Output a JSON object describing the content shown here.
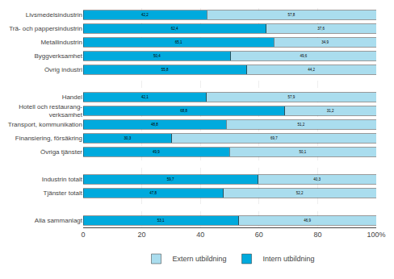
{
  "chart_data": {
    "type": "bar",
    "orientation": "horizontal",
    "stacked": true,
    "data_labels": true,
    "grid": true,
    "legend": "bottom",
    "categories": [
      "Livsmedelsindustrin",
      "Trä- och pappersindustrin",
      "Metallindustrin",
      "Byggverksamhet",
      "Övrig industri",
      null,
      "Handel",
      "Hotell och restaurang-\nverksamhet",
      "Transport, kommunikation",
      "Finansiering, försäkring",
      "Övriga tjänster",
      null,
      "Industrin totalt",
      "Tjänster totalt",
      null,
      "Alla sammanlagt"
    ],
    "series": [
      {
        "name": "Intern utbildning",
        "color": "#00aadd",
        "values": [
          42.2,
          62.4,
          65.1,
          50.4,
          55.8,
          null,
          42.1,
          68.8,
          48.8,
          30.3,
          49.9,
          null,
          59.7,
          47.8,
          null,
          53.1
        ],
        "value_labels": [
          "42,2",
          "62,4",
          "65,1",
          "50,4",
          "55,8",
          null,
          "42,1",
          "68,8",
          "48,8",
          "30,3",
          "49,9",
          null,
          "59,7",
          "47,8",
          null,
          "53,1"
        ]
      },
      {
        "name": "Extern utbildning",
        "color": "#aaddee",
        "values": [
          57.8,
          37.6,
          34.9,
          49.6,
          44.2,
          null,
          57.9,
          31.2,
          51.2,
          69.7,
          50.1,
          null,
          40.3,
          52.2,
          null,
          46.9
        ],
        "value_labels": [
          "57,8",
          "37,6",
          "34,9",
          "49,6",
          "44,2",
          null,
          "57,9",
          "31,2",
          "51,2",
          "69,7",
          "50,1",
          null,
          "40,3",
          "52,2",
          null,
          "46,9"
        ]
      }
    ],
    "xlim": [
      0,
      100
    ],
    "xticks": [
      0,
      20,
      40,
      60,
      80,
      {
        "value": 100,
        "label": "100%"
      }
    ]
  }
}
